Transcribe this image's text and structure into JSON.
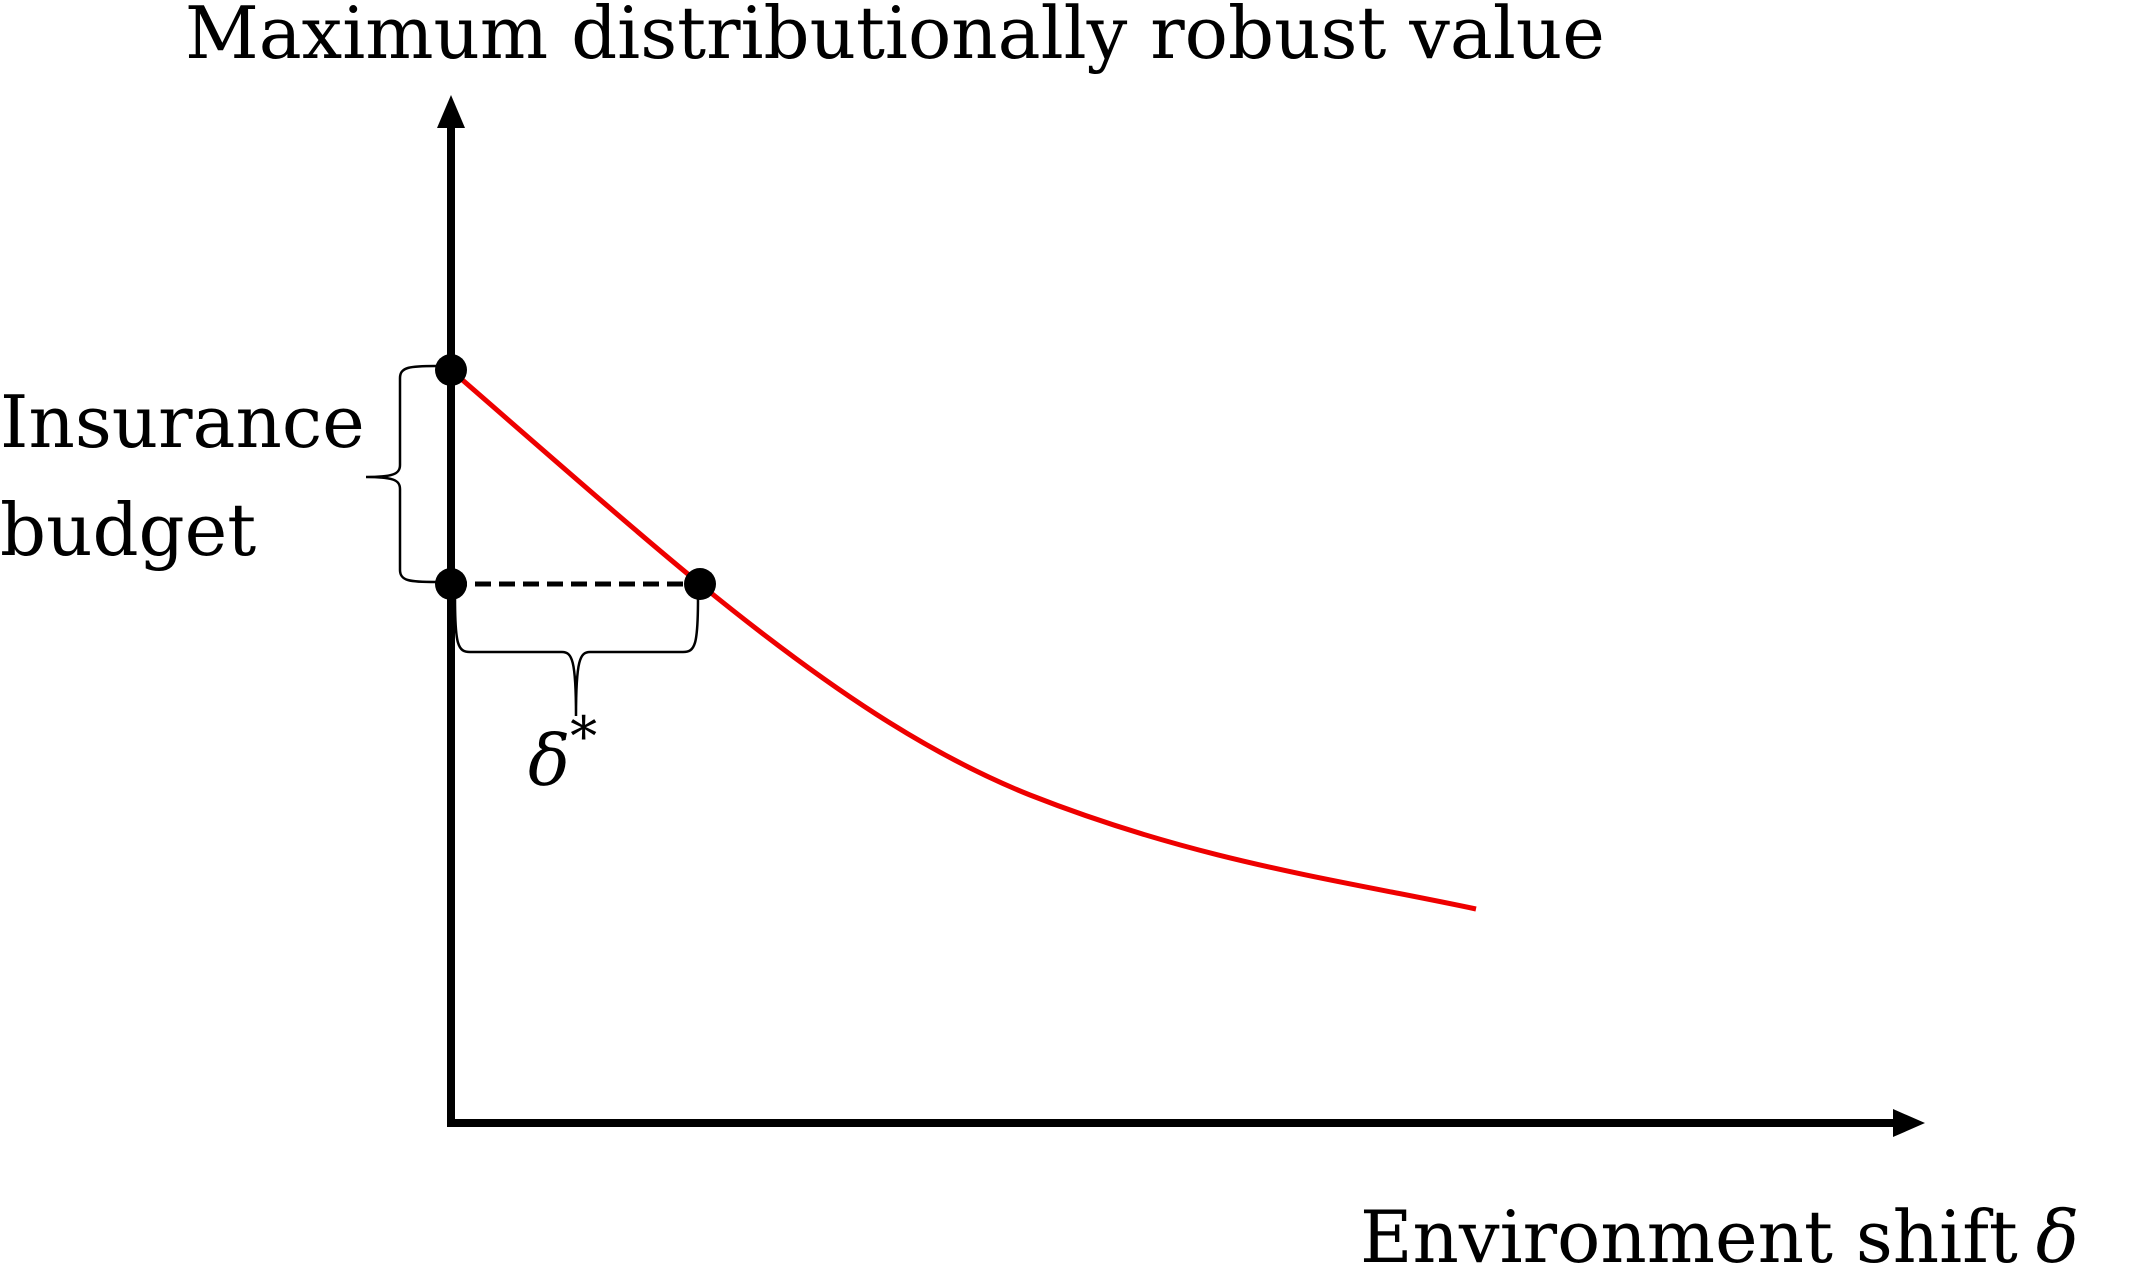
{
  "y_axis_label": "Maximum distributionally robust value",
  "x_axis_label": "Environment shift",
  "x_axis_symbol": "δ",
  "brace_label_line1": "Insurance",
  "brace_label_line2": "budget",
  "delta_star_symbol": "δ",
  "delta_star_superscript": "*",
  "colors": {
    "axis": "#000000",
    "curve": "#ee0000",
    "point": "#000000"
  }
}
